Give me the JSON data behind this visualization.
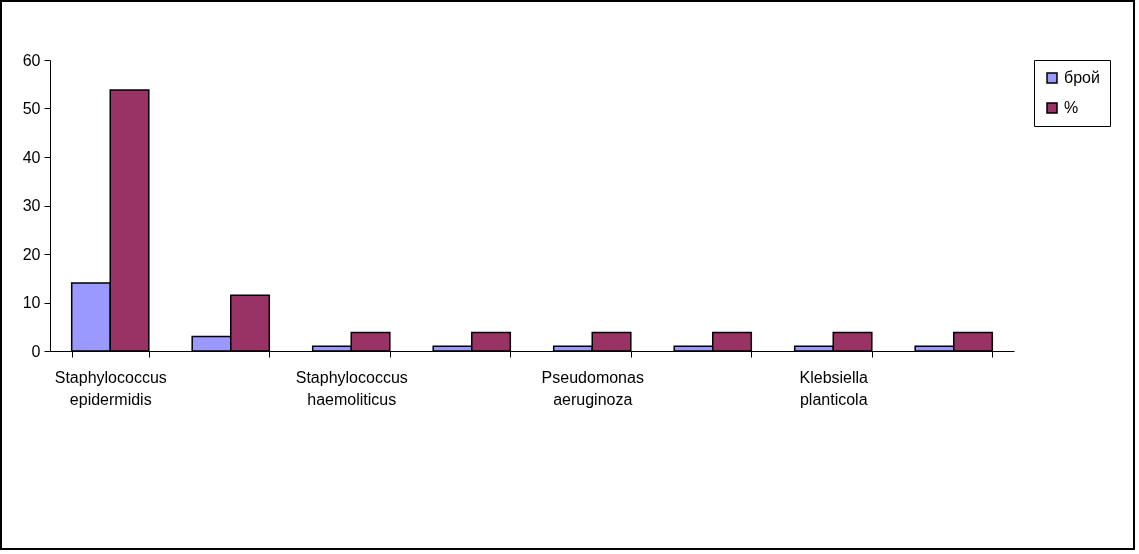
{
  "chart_data": {
    "type": "bar",
    "categories": [
      "Staphylococcus epidermidis",
      null,
      "Staphylococcus haemoliticus",
      null,
      "Pseudomonas aeruginoza",
      null,
      "Klebsiella planticola",
      null
    ],
    "series": [
      {
        "name": "брой",
        "color": "#9999ff",
        "values": [
          14,
          3,
          1,
          1,
          1,
          1,
          1,
          1
        ]
      },
      {
        "name": "%",
        "color": "#993366",
        "values": [
          53.8,
          11.5,
          3.8,
          3.8,
          3.8,
          3.8,
          3.8,
          3.8
        ]
      }
    ],
    "ylim": [
      0,
      60
    ],
    "yticks": [
      0,
      10,
      20,
      30,
      40,
      50,
      60
    ],
    "grid": false,
    "legend": "right"
  }
}
